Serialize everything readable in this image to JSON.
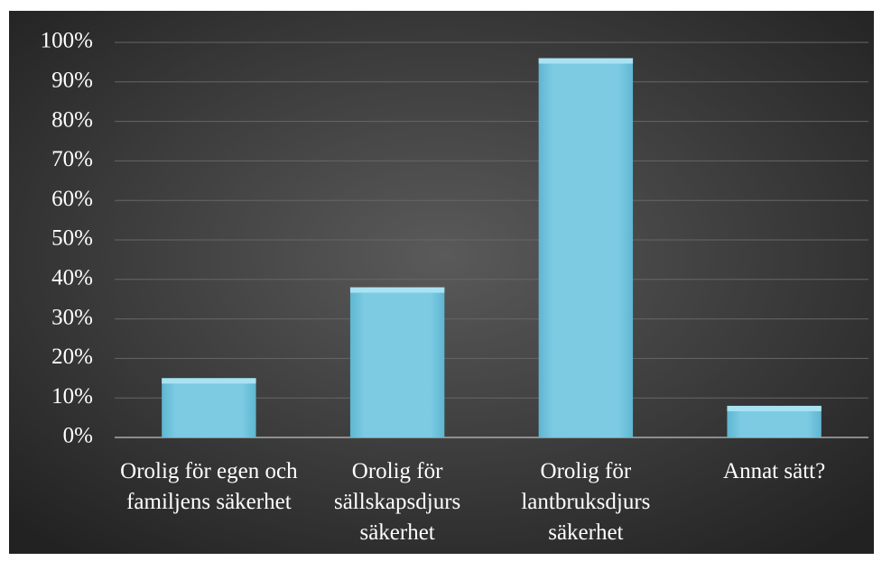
{
  "chart_data": {
    "type": "bar",
    "categories": [
      "Orolig för egen och familjens säkerhet",
      "Orolig för sällskapsdjurs säkerhet",
      "Orolig för lantbruksdjurs säkerhet",
      "Annat sätt?"
    ],
    "values": [
      15,
      38,
      96,
      8
    ],
    "color": "#7ccbe3",
    "ylim": [
      0,
      100
    ],
    "yticks": [
      {
        "value": 0,
        "label": "0%"
      },
      {
        "value": 10,
        "label": "10%"
      },
      {
        "value": 20,
        "label": "20%"
      },
      {
        "value": 30,
        "label": "30%"
      },
      {
        "value": 40,
        "label": "40%"
      },
      {
        "value": 50,
        "label": "50%"
      },
      {
        "value": 60,
        "label": "60%"
      },
      {
        "value": 70,
        "label": "70%"
      },
      {
        "value": 80,
        "label": "80%"
      },
      {
        "value": 90,
        "label": "90%"
      },
      {
        "value": 100,
        "label": "100%"
      }
    ],
    "grid": true
  }
}
